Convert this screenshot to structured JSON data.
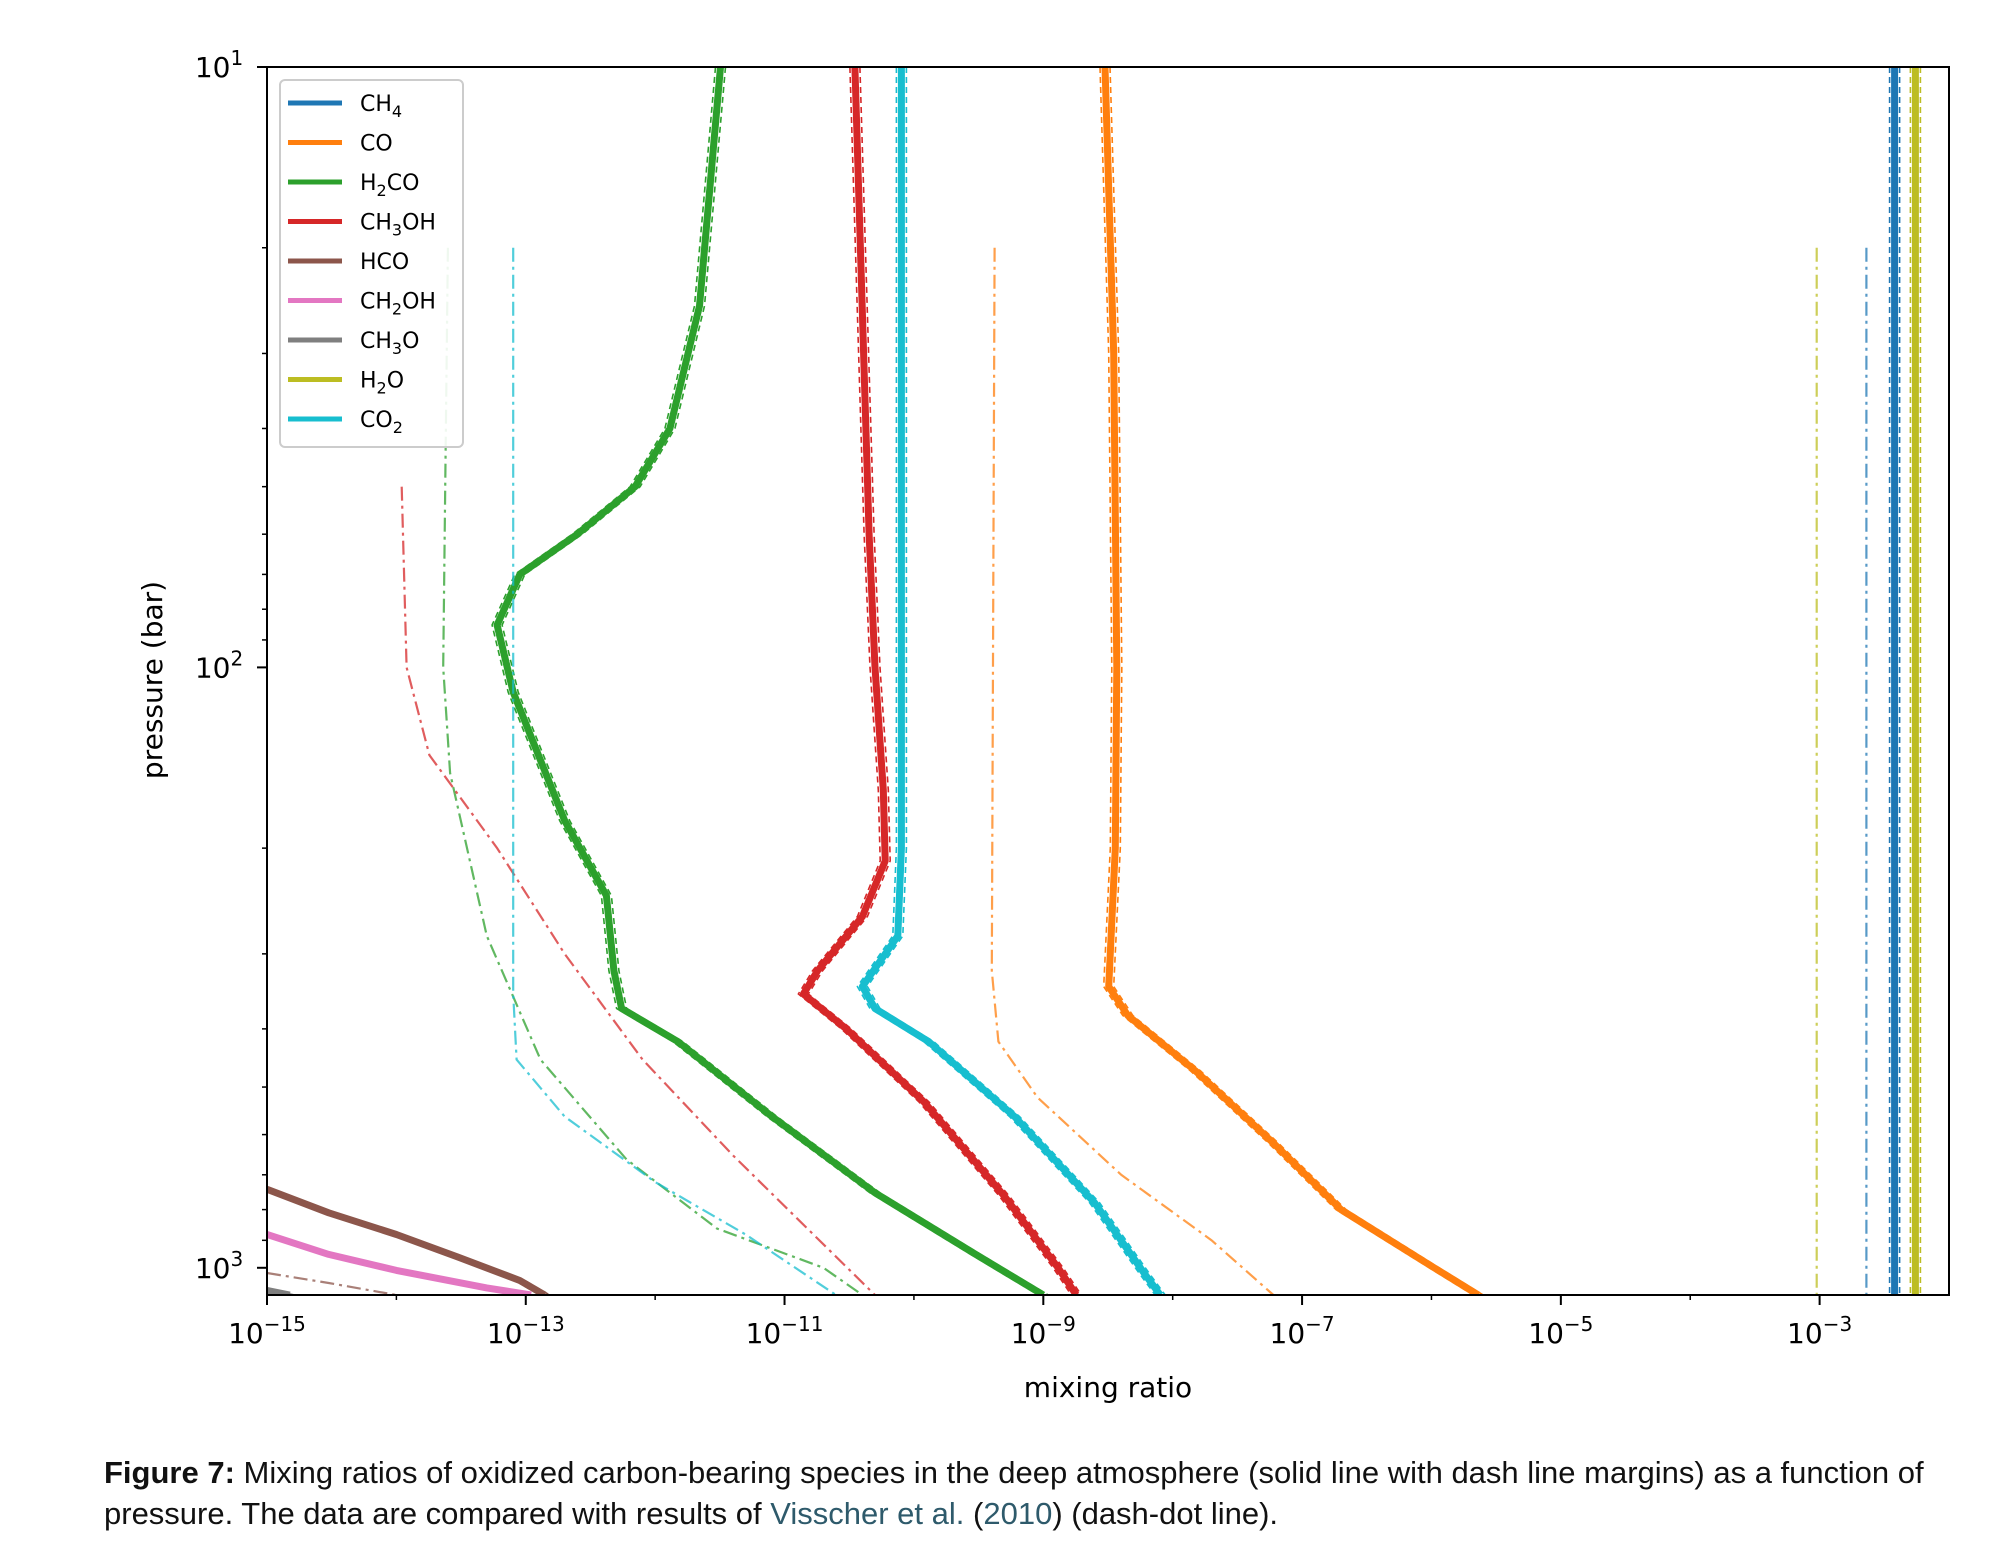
{
  "chart_data": {
    "type": "line",
    "title": "",
    "xlabel": "mixing ratio",
    "ylabel": "pressure (bar)",
    "xscale": "log",
    "yscale": "log",
    "y_inverted": true,
    "xlim": [
      1e-15,
      0.01
    ],
    "ylim": [
      10,
      1110
    ],
    "x_ticks": [
      {
        "base": "10",
        "exp": "−15",
        "value": 1e-15
      },
      {
        "base": "10",
        "exp": "−13",
        "value": 1e-13
      },
      {
        "base": "10",
        "exp": "−11",
        "value": 1e-11
      },
      {
        "base": "10",
        "exp": "−9",
        "value": 1e-09
      },
      {
        "base": "10",
        "exp": "−7",
        "value": 1e-07
      },
      {
        "base": "10",
        "exp": "−5",
        "value": 1e-05
      },
      {
        "base": "10",
        "exp": "−3",
        "value": 0.001
      }
    ],
    "y_ticks": [
      {
        "base": "10",
        "exp": "1",
        "value": 10
      },
      {
        "base": "10",
        "exp": "2",
        "value": 100
      },
      {
        "base": "10",
        "exp": "3",
        "value": 1000
      }
    ],
    "grid": false,
    "legend_position": "top-left",
    "legend": [
      {
        "label": "CH",
        "sub": "4",
        "post": "",
        "color": "#1f77b4"
      },
      {
        "label": "CO",
        "sub": "",
        "post": "",
        "color": "#ff7f0e"
      },
      {
        "label": "H",
        "sub": "2",
        "post": "CO",
        "color": "#2ca02c"
      },
      {
        "label": "CH",
        "sub": "3",
        "post": "OH",
        "color": "#d62728"
      },
      {
        "label": "HCO",
        "sub": "",
        "post": "",
        "color": "#8c564b"
      },
      {
        "label": "CH",
        "sub": "2",
        "post": "OH",
        "color": "#e377c2"
      },
      {
        "label": "CH",
        "sub": "3",
        "post": "O",
        "color": "#7f7f7f"
      },
      {
        "label": "H",
        "sub": "2",
        "post": "O",
        "color": "#bcbd22"
      },
      {
        "label": "CO",
        "sub": "2",
        "post": "",
        "color": "#17becf"
      }
    ],
    "series": [
      {
        "species": "CH4",
        "style": "model",
        "color": "#1f77b4",
        "points": [
          [
            0.0038,
            10
          ],
          [
            0.0038,
            1110
          ]
        ]
      },
      {
        "species": "CO",
        "style": "model",
        "color": "#ff7f0e",
        "points": [
          [
            3e-09,
            10
          ],
          [
            3.5e-09,
            30
          ],
          [
            3.7e-09,
            100
          ],
          [
            3.6e-09,
            200
          ],
          [
            3.2e-09,
            340
          ],
          [
            4.5e-09,
            380
          ],
          [
            1.5e-08,
            470
          ],
          [
            6e-08,
            620
          ],
          [
            2e-07,
            800
          ],
          [
            1.05e-06,
            1000
          ],
          [
            2.3e-06,
            1110
          ]
        ]
      },
      {
        "species": "H2CO",
        "style": "model",
        "color": "#2ca02c",
        "points": [
          [
            3.2e-12,
            10
          ],
          [
            2.2e-12,
            25
          ],
          [
            1.3e-12,
            40
          ],
          [
            7e-13,
            50
          ],
          [
            2.5e-13,
            60
          ],
          [
            9e-14,
            70
          ],
          [
            6e-14,
            85
          ],
          [
            8e-14,
            110
          ],
          [
            2e-13,
            180
          ],
          [
            4.2e-13,
            240
          ],
          [
            4.8e-13,
            320
          ],
          [
            5.5e-13,
            370
          ],
          [
            1.5e-12,
            420
          ],
          [
            8e-12,
            560
          ],
          [
            5e-11,
            750
          ],
          [
            3e-10,
            950
          ],
          [
            1e-09,
            1110
          ]
        ]
      },
      {
        "species": "CH3OH",
        "style": "model",
        "color": "#d62728",
        "points": [
          [
            3.5e-11,
            10
          ],
          [
            4.5e-11,
            60
          ],
          [
            5e-11,
            100
          ],
          [
            5.8e-11,
            160
          ],
          [
            6e-11,
            210
          ],
          [
            4e-11,
            260
          ],
          [
            1.8e-11,
            320
          ],
          [
            1.4e-11,
            350
          ],
          [
            3e-11,
            400
          ],
          [
            1.2e-10,
            530
          ],
          [
            5e-10,
            760
          ],
          [
            1.3e-09,
            1000
          ],
          [
            1.8e-09,
            1110
          ]
        ]
      },
      {
        "species": "HCO",
        "style": "model",
        "color": "#8c564b",
        "points": [
          [
            1e-15,
            740
          ],
          [
            3e-15,
            810
          ],
          [
            1e-14,
            880
          ],
          [
            3e-14,
            960
          ],
          [
            9e-14,
            1050
          ],
          [
            1.4e-13,
            1110
          ]
        ]
      },
      {
        "species": "CH2OH",
        "style": "model",
        "color": "#e377c2",
        "points": [
          [
            1e-15,
            880
          ],
          [
            3e-15,
            950
          ],
          [
            1e-14,
            1010
          ],
          [
            5e-14,
            1080
          ],
          [
            1.1e-13,
            1110
          ]
        ]
      },
      {
        "species": "CH3O",
        "style": "model",
        "color": "#7f7f7f",
        "points": [
          [
            8e-16,
            1080
          ],
          [
            1.5e-15,
            1110
          ]
        ]
      },
      {
        "species": "H2O",
        "style": "model",
        "color": "#bcbd22",
        "points": [
          [
            0.0055,
            10
          ],
          [
            0.0055,
            1110
          ]
        ]
      },
      {
        "species": "CO2",
        "style": "model",
        "color": "#17becf",
        "points": [
          [
            8e-11,
            10
          ],
          [
            8e-11,
            200
          ],
          [
            7.5e-11,
            280
          ],
          [
            4e-11,
            340
          ],
          [
            5e-11,
            370
          ],
          [
            1.3e-10,
            420
          ],
          [
            6e-10,
            560
          ],
          [
            2.5e-09,
            780
          ],
          [
            6e-09,
            1020
          ],
          [
            8e-09,
            1110
          ]
        ]
      },
      {
        "species": "CH4",
        "style": "reference",
        "color": "#1f77b4",
        "points": [
          [
            0.0023,
            20
          ],
          [
            0.0023,
            1110
          ]
        ]
      },
      {
        "species": "CO",
        "style": "reference",
        "color": "#ff7f0e",
        "points": [
          [
            4.2e-10,
            20
          ],
          [
            4e-10,
            320
          ],
          [
            4.5e-10,
            420
          ],
          [
            9e-10,
            520
          ],
          [
            4e-09,
            700
          ],
          [
            2e-08,
            900
          ],
          [
            6e-08,
            1110
          ]
        ]
      },
      {
        "species": "H2CO",
        "style": "reference",
        "color": "#2ca02c",
        "points": [
          [
            2.5e-14,
            20
          ],
          [
            2.3e-14,
            100
          ],
          [
            2.6e-14,
            150
          ],
          [
            5e-14,
            280
          ],
          [
            1.3e-13,
            450
          ],
          [
            6e-13,
            660
          ],
          [
            3e-12,
            860
          ],
          [
            2e-11,
            1000
          ],
          [
            4e-11,
            1110
          ]
        ]
      },
      {
        "species": "CH3OH",
        "style": "reference",
        "color": "#d62728",
        "points": [
          [
            1.1e-14,
            50
          ],
          [
            1.2e-14,
            100
          ],
          [
            1.8e-14,
            140
          ],
          [
            6e-14,
            200
          ],
          [
            2e-13,
            300
          ],
          [
            8e-13,
            450
          ],
          [
            4e-12,
            650
          ],
          [
            1.5e-11,
            860
          ],
          [
            5e-11,
            1110
          ]
        ]
      },
      {
        "species": "H2O",
        "style": "reference",
        "color": "#bcbd22",
        "points": [
          [
            0.00095,
            20
          ],
          [
            0.00095,
            1110
          ]
        ]
      },
      {
        "species": "CO2",
        "style": "reference",
        "color": "#17becf",
        "points": [
          [
            8e-14,
            20
          ],
          [
            8e-14,
            350
          ],
          [
            8.5e-14,
            450
          ],
          [
            2e-13,
            560
          ],
          [
            1e-12,
            720
          ],
          [
            5e-12,
            880
          ],
          [
            2.5e-11,
            1110
          ]
        ]
      },
      {
        "species": "CH3O",
        "style": "reference",
        "color": "#8c564b",
        "points": [
          [
            1e-15,
            1020
          ],
          [
            3e-15,
            1060
          ],
          [
            1e-14,
            1110
          ]
        ]
      }
    ]
  },
  "caption": {
    "label": "Figure 7:",
    "text1": " Mixing ratios of oxidized carbon-bearing species in the deep atmosphere (solid line with dash line margins) as a function of pressure. The data are compared with results of ",
    "cite_author": "Visscher et al.",
    "cite_open": " (",
    "cite_year": "2010",
    "cite_close": ")",
    "text2": " (dash-dot line)."
  }
}
